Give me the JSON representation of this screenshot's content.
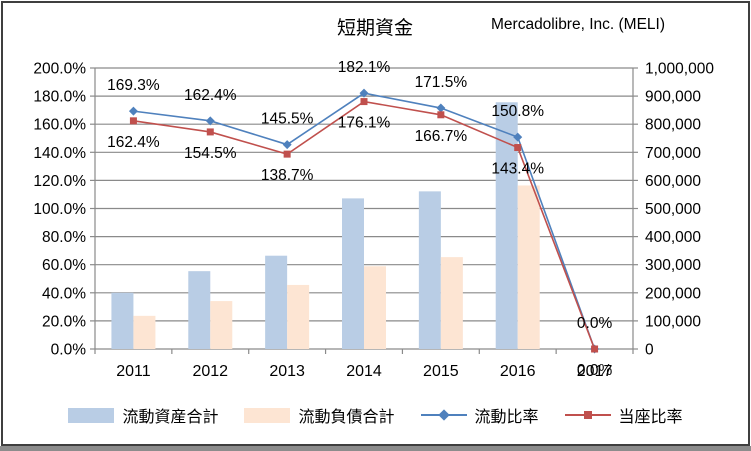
{
  "window": {
    "frame_border_color": "#3F3F3F",
    "bottom_strip_color": "#8C8C8C"
  },
  "chart_data": {
    "type": "combo-bar-line",
    "title": "短期資金",
    "subtitle": "Mercadolibre, Inc. (MELI)",
    "categories": [
      "2011",
      "2012",
      "2013",
      "2014",
      "2015",
      "2016",
      "2017"
    ],
    "left_axis": {
      "min": 0,
      "max": 200,
      "step": 20,
      "unit": "%",
      "labels": [
        "200.0%",
        "180.0%",
        "160.0%",
        "140.0%",
        "120.0%",
        "100.0%",
        "80.0%",
        "60.0%",
        "40.0%",
        "20.0%",
        "0.0%"
      ]
    },
    "right_axis": {
      "min": 0,
      "max": 1000000,
      "step": 100000,
      "labels": [
        "1,000,000",
        "900,000",
        "800,000",
        "700,000",
        "600,000",
        "500,000",
        "400,000",
        "300,000",
        "200,000",
        "100,000",
        "0"
      ]
    },
    "grid": true,
    "legend_position": "bottom",
    "gridline_color": "#8A8A8A",
    "bar_series": [
      {
        "name": "流動資産合計",
        "slug": "current-assets",
        "color": "#B9CDE5",
        "axis": "right",
        "values": [
          200000,
          277000,
          332000,
          536000,
          561000,
          878000,
          0
        ]
      },
      {
        "name": "流動負債合計",
        "slug": "current-liabilities",
        "color": "#FDE5D3",
        "axis": "right",
        "values": [
          118000,
          170500,
          228000,
          294500,
          327000,
          582000,
          0
        ]
      }
    ],
    "line_series": [
      {
        "name": "流動比率",
        "slug": "current-ratio",
        "color": "#4F81BD",
        "marker": "diamond",
        "axis": "left",
        "values": [
          169.3,
          162.4,
          145.5,
          182.1,
          171.5,
          150.8,
          0
        ],
        "labels": [
          "169.3%",
          "162.4%",
          "145.5%",
          "182.1%",
          "171.5%",
          "150.8%",
          "0.0%"
        ]
      },
      {
        "name": "当座比率",
        "slug": "quick-ratio",
        "color": "#C0504D",
        "marker": "square",
        "axis": "left",
        "values": [
          162.4,
          154.5,
          138.7,
          176.1,
          166.7,
          143.4,
          0
        ],
        "labels": [
          "162.4%",
          "154.5%",
          "138.7%",
          "176.1%",
          "166.7%",
          "143.4%",
          "0.0%"
        ]
      }
    ]
  }
}
